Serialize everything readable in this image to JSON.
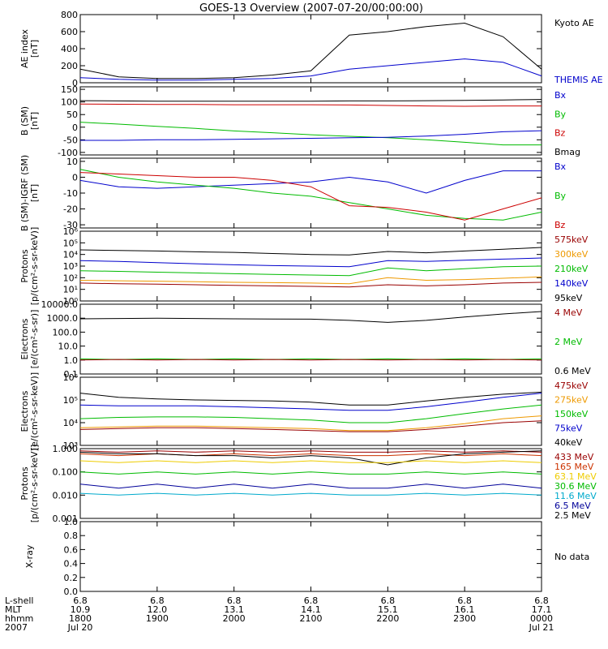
{
  "title": "GOES-13 Overview (2007-07-20/00:00:00)",
  "no_data_label": "No data",
  "chart_data": {
    "type": "line",
    "x_hours": [
      18,
      18.5,
      19,
      19.5,
      20,
      20.5,
      21,
      21.5,
      22,
      22.5,
      23,
      23.5,
      24
    ],
    "footer": {
      "row_labels": [
        "L-shell",
        "MLT",
        "hhmm",
        "2007"
      ],
      "ticks": [
        {
          "hour": 18,
          "lshell": "6.8",
          "mlt": "10.9",
          "hhmm": "1800",
          "date": "Jul 20"
        },
        {
          "hour": 19,
          "lshell": "6.8",
          "mlt": "12.0",
          "hhmm": "1900",
          "date": ""
        },
        {
          "hour": 20,
          "lshell": "6.8",
          "mlt": "13.1",
          "hhmm": "2000",
          "date": ""
        },
        {
          "hour": 21,
          "lshell": "6.8",
          "mlt": "14.1",
          "hhmm": "2100",
          "date": ""
        },
        {
          "hour": 22,
          "lshell": "6.8",
          "mlt": "15.1",
          "hhmm": "2200",
          "date": ""
        },
        {
          "hour": 23,
          "lshell": "6.8",
          "mlt": "16.1",
          "hhmm": "2300",
          "date": ""
        },
        {
          "hour": 24,
          "lshell": "6.8",
          "mlt": "17.1",
          "hhmm": "0000",
          "date": "Jul 21"
        }
      ]
    },
    "panels": [
      {
        "id": "ae",
        "ylabel_lines": [
          "AE index",
          "[nT]"
        ],
        "scale": "linear",
        "ylim": [
          0,
          800
        ],
        "yticks": [
          0,
          200,
          400,
          600,
          800
        ],
        "ytick_labels": [
          "0",
          "200",
          "400",
          "600",
          "800"
        ],
        "legend": [
          {
            "name": "Kyoto AE",
            "color": "#000000"
          },
          {
            "name": "THEMIS AE",
            "color": "#0000cc"
          }
        ],
        "series": [
          {
            "name": "Kyoto AE",
            "color": "#000000",
            "values": [
              160,
              70,
              50,
              50,
              60,
              90,
              140,
              560,
              600,
              660,
              700,
              540,
              160
            ]
          },
          {
            "name": "THEMIS AE",
            "color": "#0000cc",
            "values": [
              60,
              40,
              30,
              30,
              40,
              50,
              80,
              160,
              200,
              240,
              280,
              240,
              80
            ]
          }
        ]
      },
      {
        "id": "bsm",
        "ylabel_lines": [
          "B (SM)",
          "[nT]"
        ],
        "scale": "linear",
        "ylim": [
          -110,
          160
        ],
        "yticks": [
          -100,
          -50,
          0,
          50,
          100,
          150
        ],
        "ytick_labels": [
          "-100",
          "-50",
          "0",
          "50",
          "100",
          "150"
        ],
        "legend": [
          {
            "name": "Bx",
            "color": "#0000cc"
          },
          {
            "name": "By",
            "color": "#00bb00"
          },
          {
            "name": "Bz",
            "color": "#cc0000"
          },
          {
            "name": "Bmag",
            "color": "#000000"
          }
        ],
        "series": [
          {
            "name": "Bmag",
            "color": "#000000",
            "values": [
              105,
              104,
              103,
              103,
              103,
              103,
              103,
              104,
              104,
              105,
              106,
              108,
              110
            ]
          },
          {
            "name": "Bz",
            "color": "#cc0000",
            "values": [
              92,
              91,
              90,
              90,
              89,
              89,
              89,
              88,
              86,
              84,
              83,
              84,
              84
            ]
          },
          {
            "name": "By",
            "color": "#00bb00",
            "values": [
              20,
              12,
              3,
              -5,
              -15,
              -22,
              -30,
              -36,
              -42,
              -50,
              -60,
              -70,
              -70
            ]
          },
          {
            "name": "Bx",
            "color": "#0000cc",
            "values": [
              -52,
              -52,
              -50,
              -50,
              -48,
              -46,
              -44,
              -42,
              -40,
              -35,
              -28,
              -18,
              -14
            ]
          }
        ]
      },
      {
        "id": "bigrf",
        "ylabel_lines": [
          "B (SM)-IGRF (SM)",
          "[nT]"
        ],
        "scale": "linear",
        "ylim": [
          -32,
          12
        ],
        "yticks": [
          -30,
          -20,
          -10,
          0,
          10
        ],
        "ytick_labels": [
          "-30",
          "-20",
          "-10",
          "0",
          "10"
        ],
        "legend": [
          {
            "name": "Bx",
            "color": "#0000cc"
          },
          {
            "name": "By",
            "color": "#00bb00"
          },
          {
            "name": "Bz",
            "color": "#cc0000"
          }
        ],
        "series": [
          {
            "name": "Bx",
            "color": "#0000cc",
            "values": [
              -2,
              -6,
              -7,
              -6,
              -5,
              -4,
              -3,
              0,
              -3,
              -10,
              -2,
              4,
              4
            ]
          },
          {
            "name": "By",
            "color": "#00bb00",
            "values": [
              5,
              0,
              -3,
              -5,
              -7,
              -10,
              -12,
              -16,
              -20,
              -24,
              -26,
              -27,
              -22
            ]
          },
          {
            "name": "Bz",
            "color": "#cc0000",
            "values": [
              3,
              2,
              1,
              0,
              0,
              -2,
              -6,
              -18,
              -19,
              -22,
              -27,
              -20,
              -13
            ]
          }
        ]
      },
      {
        "id": "protons",
        "ylabel_lines": [
          "Protons",
          "[p/(cm²-s-sr-keV)]"
        ],
        "scale": "log",
        "ylim": [
          1,
          1000000
        ],
        "yticks": [
          1,
          10,
          100,
          1000,
          10000,
          100000,
          1000000
        ],
        "ytick_labels": [
          "10⁰",
          "10¹",
          "10²",
          "10³",
          "10⁴",
          "10⁵",
          "10⁶"
        ],
        "legend": [
          {
            "name": "575keV",
            "color": "#990000"
          },
          {
            "name": "300keV",
            "color": "#ee9900"
          },
          {
            "name": "210keV",
            "color": "#00bb00"
          },
          {
            "name": "140keV",
            "color": "#0000cc"
          },
          {
            "name": "95keV",
            "color": "#000000"
          }
        ],
        "series": [
          {
            "name": "95keV",
            "color": "#000000",
            "values": [
              25000,
              22000,
              20000,
              17000,
              15000,
              12000,
              10000,
              9000,
              18000,
              14000,
              20000,
              28000,
              40000
            ]
          },
          {
            "name": "140keV",
            "color": "#0000cc",
            "values": [
              3000,
              2500,
              2000,
              1600,
              1300,
              1100,
              1000,
              900,
              3000,
              2500,
              3200,
              4000,
              5000
            ]
          },
          {
            "name": "210keV",
            "color": "#00bb00",
            "values": [
              400,
              350,
              300,
              260,
              220,
              190,
              170,
              150,
              700,
              400,
              600,
              900,
              1000
            ]
          },
          {
            "name": "300keV",
            "color": "#ee9900",
            "values": [
              60,
              55,
              50,
              45,
              40,
              38,
              35,
              30,
              100,
              60,
              70,
              90,
              120
            ]
          },
          {
            "name": "575keV",
            "color": "#990000",
            "values": [
              35,
              30,
              28,
              25,
              22,
              20,
              18,
              16,
              25,
              20,
              25,
              35,
              40
            ]
          }
        ]
      },
      {
        "id": "electrons_integral",
        "ylabel_lines": [
          "Electrons",
          "[e/(cm²-s-sr)]"
        ],
        "scale": "log",
        "ylim": [
          0.1,
          10000
        ],
        "yticks": [
          0.1,
          1,
          10,
          100,
          1000,
          10000
        ],
        "ytick_labels": [
          "0.1",
          "1.0",
          "10.0",
          "100.0",
          "1000.0",
          "10000.0"
        ],
        "legend": [
          {
            "name": "4 MeV",
            "color": "#990000"
          },
          {
            "name": "2 MeV",
            "color": "#00bb00"
          },
          {
            "name": "0.6 MeV",
            "color": "#000000"
          }
        ],
        "series": [
          {
            "name": "0.6 MeV",
            "color": "#000000",
            "values": [
              900,
              950,
              1000,
              950,
              900,
              880,
              850,
              700,
              500,
              700,
              1200,
              2000,
              3000
            ]
          },
          {
            "name": "2 MeV",
            "color": "#00bb00",
            "values": [
              1.2,
              1.1,
              1.2,
              1.1,
              1.2,
              1.1,
              1.2,
              1.1,
              1.2,
              1.1,
              1.2,
              1.1,
              1.2
            ]
          },
          {
            "name": "4 MeV",
            "color": "#990000",
            "values": [
              1.0,
              1.1,
              1.0,
              1.1,
              1.0,
              1.1,
              1.0,
              1.1,
              1.0,
              1.1,
              1.0,
              1.1,
              1.0
            ]
          }
        ]
      },
      {
        "id": "electrons_diff",
        "ylabel_lines": [
          "Electrons",
          "[e/(cm²-s-sr-keV)]"
        ],
        "scale": "log",
        "ylim": [
          1000,
          1000000
        ],
        "yticks": [
          1000,
          10000,
          100000,
          1000000
        ],
        "ytick_labels": [
          "10³",
          "10⁴",
          "10⁵",
          "10⁶"
        ],
        "legend": [
          {
            "name": "475keV",
            "color": "#990000"
          },
          {
            "name": "275keV",
            "color": "#ee9900"
          },
          {
            "name": "150keV",
            "color": "#00bb00"
          },
          {
            "name": "75keV",
            "color": "#0000cc"
          },
          {
            "name": "40keV",
            "color": "#000000"
          }
        ],
        "series": [
          {
            "name": "40keV",
            "color": "#000000",
            "values": [
              200000,
              130000,
              110000,
              100000,
              95000,
              90000,
              80000,
              60000,
              60000,
              90000,
              130000,
              180000,
              220000
            ]
          },
          {
            "name": "75keV",
            "color": "#0000cc",
            "values": [
              60000,
              55000,
              55000,
              55000,
              50000,
              45000,
              40000,
              35000,
              35000,
              50000,
              80000,
              130000,
              200000
            ]
          },
          {
            "name": "150keV",
            "color": "#00bb00",
            "values": [
              15000,
              17000,
              18000,
              18000,
              17000,
              15000,
              13000,
              10000,
              10000,
              15000,
              25000,
              40000,
              60000
            ]
          },
          {
            "name": "275keV",
            "color": "#ee9900",
            "values": [
              6000,
              6500,
              7000,
              7000,
              6500,
              6000,
              5500,
              4500,
              4500,
              6000,
              9000,
              15000,
              20000
            ]
          },
          {
            "name": "475keV",
            "color": "#990000",
            "values": [
              5000,
              5500,
              6000,
              6000,
              5500,
              5000,
              4500,
              4000,
              4000,
              5000,
              7000,
              10000,
              12000
            ]
          }
        ]
      },
      {
        "id": "protons_hi",
        "ylabel_lines": [
          "Protons",
          "[p/(cm²-s-sr-keV)]"
        ],
        "scale": "log",
        "ylim": [
          0.001,
          1
        ],
        "yticks": [
          0.001,
          0.01,
          0.1,
          1
        ],
        "ytick_labels": [
          "0.001",
          "0.010",
          "0.100",
          "1.000"
        ],
        "legend": [
          {
            "name": "433 MeV",
            "color": "#990000"
          },
          {
            "name": "165 MeV",
            "color": "#cc3300"
          },
          {
            "name": "63.1 MeV",
            "color": "#eecc00"
          },
          {
            "name": "30.6 MeV",
            "color": "#00bb00"
          },
          {
            "name": "11.6 MeV",
            "color": "#00aacc"
          },
          {
            "name": "6.5 MeV",
            "color": "#000099"
          },
          {
            "name": "2.5 MeV",
            "color": "#000000"
          }
        ],
        "series": [
          {
            "name": "433 MeV",
            "color": "#990000",
            "values": [
              0.8,
              0.7,
              0.8,
              0.7,
              0.8,
              0.7,
              0.8,
              0.7,
              0.7,
              0.8,
              0.7,
              0.8,
              0.7
            ]
          },
          {
            "name": "165 MeV",
            "color": "#cc3300",
            "values": [
              0.6,
              0.5,
              0.6,
              0.5,
              0.6,
              0.5,
              0.6,
              0.5,
              0.5,
              0.6,
              0.5,
              0.6,
              0.5
            ]
          },
          {
            "name": "2.5 MeV",
            "color": "#000000",
            "values": [
              0.7,
              0.6,
              0.6,
              0.5,
              0.5,
              0.4,
              0.5,
              0.4,
              0.2,
              0.4,
              0.6,
              0.7,
              0.8
            ]
          },
          {
            "name": "63.1 MeV",
            "color": "#eecc00",
            "values": [
              0.3,
              0.25,
              0.3,
              0.25,
              0.3,
              0.25,
              0.3,
              0.25,
              0.25,
              0.3,
              0.25,
              0.3,
              0.25
            ]
          },
          {
            "name": "30.6 MeV",
            "color": "#00bb00",
            "values": [
              0.1,
              0.08,
              0.1,
              0.08,
              0.1,
              0.08,
              0.1,
              0.08,
              0.08,
              0.1,
              0.08,
              0.1,
              0.08
            ]
          },
          {
            "name": "6.5 MeV",
            "color": "#000099",
            "values": [
              0.03,
              0.02,
              0.03,
              0.02,
              0.03,
              0.02,
              0.03,
              0.02,
              0.02,
              0.03,
              0.02,
              0.03,
              0.02
            ]
          },
          {
            "name": "11.6 MeV",
            "color": "#00aacc",
            "values": [
              0.012,
              0.01,
              0.012,
              0.01,
              0.012,
              0.01,
              0.012,
              0.01,
              0.01,
              0.012,
              0.01,
              0.012,
              0.01
            ]
          }
        ]
      },
      {
        "id": "xray",
        "ylabel_lines": [
          "X-ray"
        ],
        "scale": "linear",
        "ylim": [
          0,
          1
        ],
        "yticks": [
          0,
          0.2,
          0.4,
          0.6,
          0.8,
          1.0
        ],
        "ytick_labels": [
          "0.0",
          "0.2",
          "0.4",
          "0.6",
          "0.8",
          "1.0"
        ],
        "legend": [
          {
            "name": "No data",
            "color": "#000000"
          }
        ],
        "series": []
      }
    ]
  }
}
